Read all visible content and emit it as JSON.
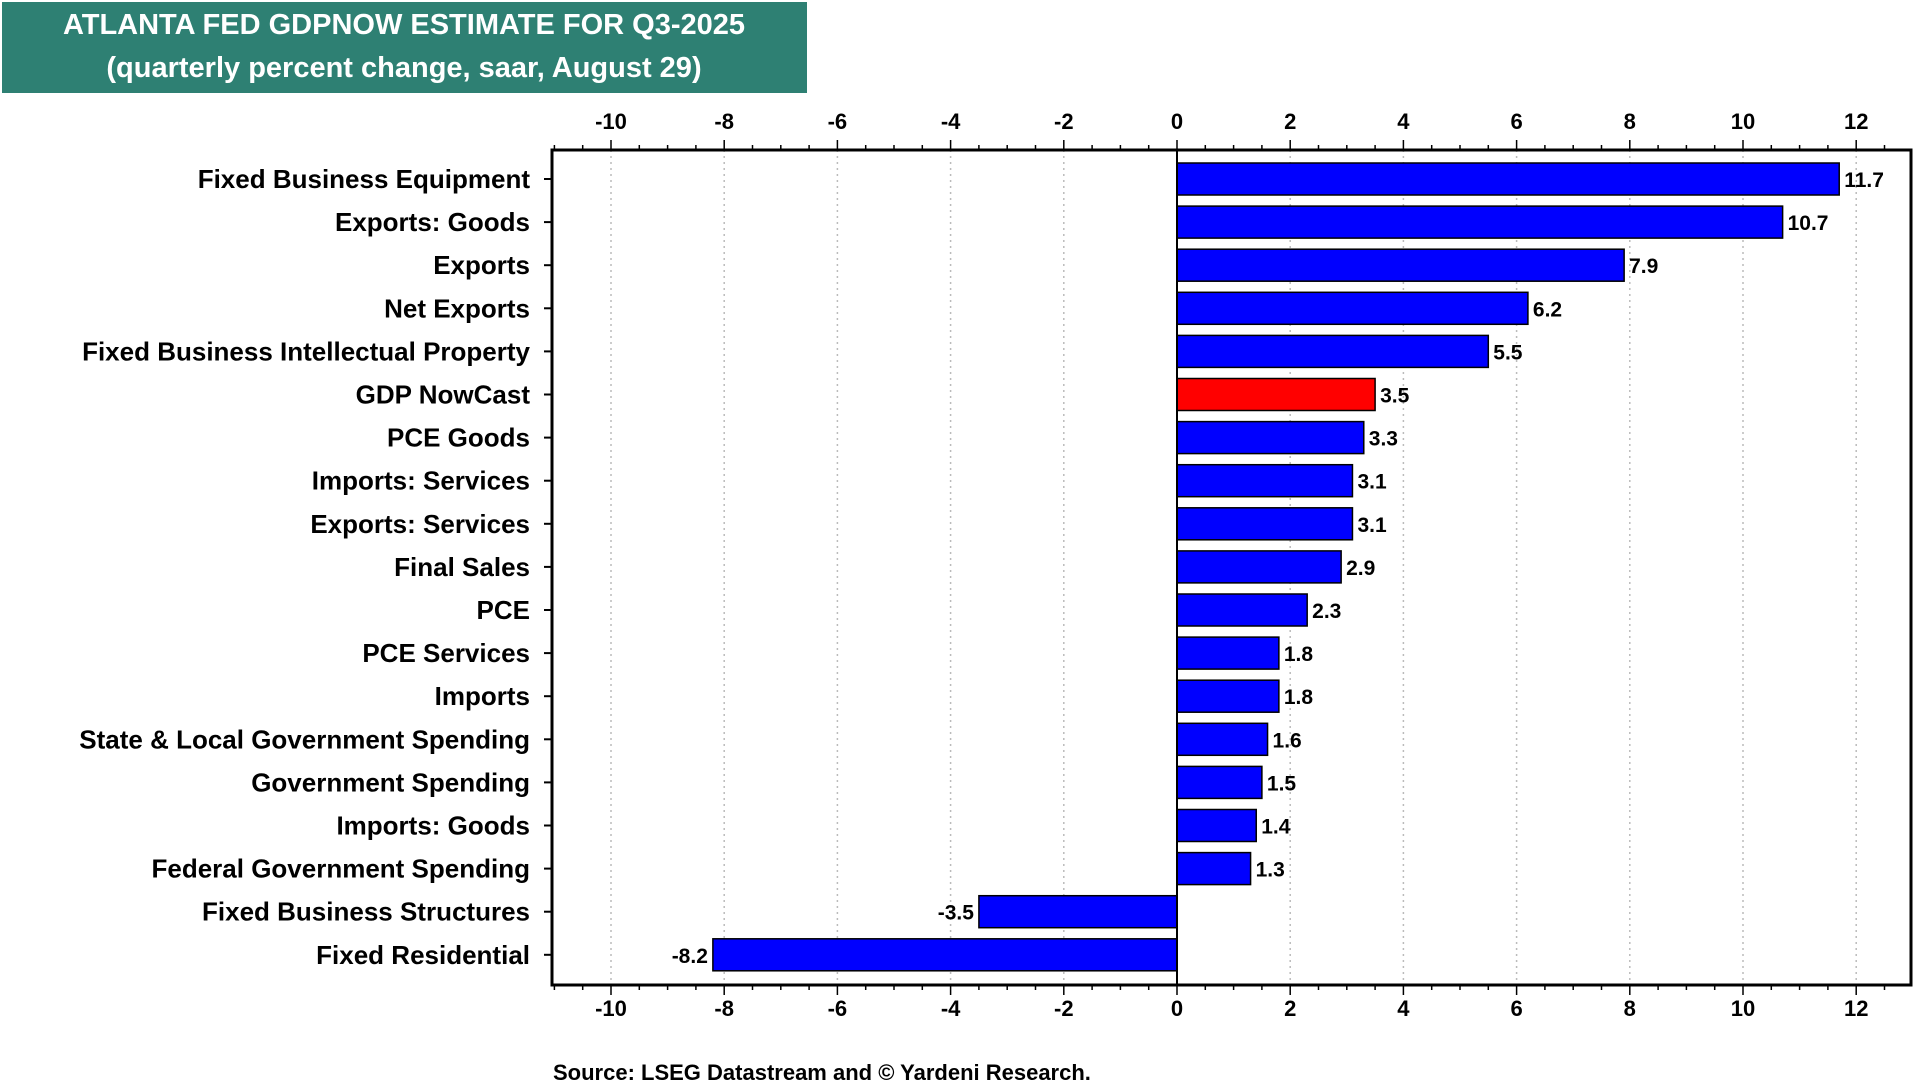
{
  "colors": {
    "title_bg": "#2e8073",
    "bar": "#0000ff",
    "highlight_bar": "#ff0000",
    "grid": "#bbbbbb",
    "axis": "#000000"
  },
  "source": "Source: LSEG Datastream and © Yardeni Research.",
  "chart_data": {
    "type": "bar",
    "orientation": "horizontal",
    "title": "ATLANTA FED GDPNOW ESTIMATE FOR Q3-2025",
    "subtitle": "(quarterly percent change, saar, August 29)",
    "xlim": [
      -11,
      13
    ],
    "ticks": [
      -10,
      -8,
      -6,
      -4,
      -2,
      0,
      2,
      4,
      6,
      8,
      10,
      12
    ],
    "grid": true,
    "highlight": "GDP NowCast",
    "categories": [
      "Fixed Business Equipment",
      "Exports: Goods",
      "Exports",
      "Net Exports",
      "Fixed Business Intellectual Property",
      "GDP NowCast",
      "PCE Goods",
      "Imports: Services",
      "Exports: Services",
      "Final Sales",
      "PCE",
      "PCE Services",
      "Imports",
      "State & Local Government Spending",
      "Government Spending",
      "Imports: Goods",
      "Federal Government Spending",
      "Fixed Business Structures",
      "Fixed Residential"
    ],
    "values": [
      11.7,
      10.7,
      7.9,
      6.2,
      5.5,
      3.5,
      3.3,
      3.1,
      3.1,
      2.9,
      2.3,
      1.8,
      1.8,
      1.6,
      1.5,
      1.4,
      1.3,
      -3.5,
      -8.2
    ],
    "value_labels": [
      "11.7",
      "10.7",
      "7.9",
      "6.2",
      "5.5",
      "3.5",
      "3.3",
      "3.1",
      "3.1",
      "2.9",
      "2.3",
      "1.8",
      "1.8",
      "1.6",
      "1.5",
      "1.4",
      "1.3",
      "-3.5",
      "-8.2"
    ]
  }
}
